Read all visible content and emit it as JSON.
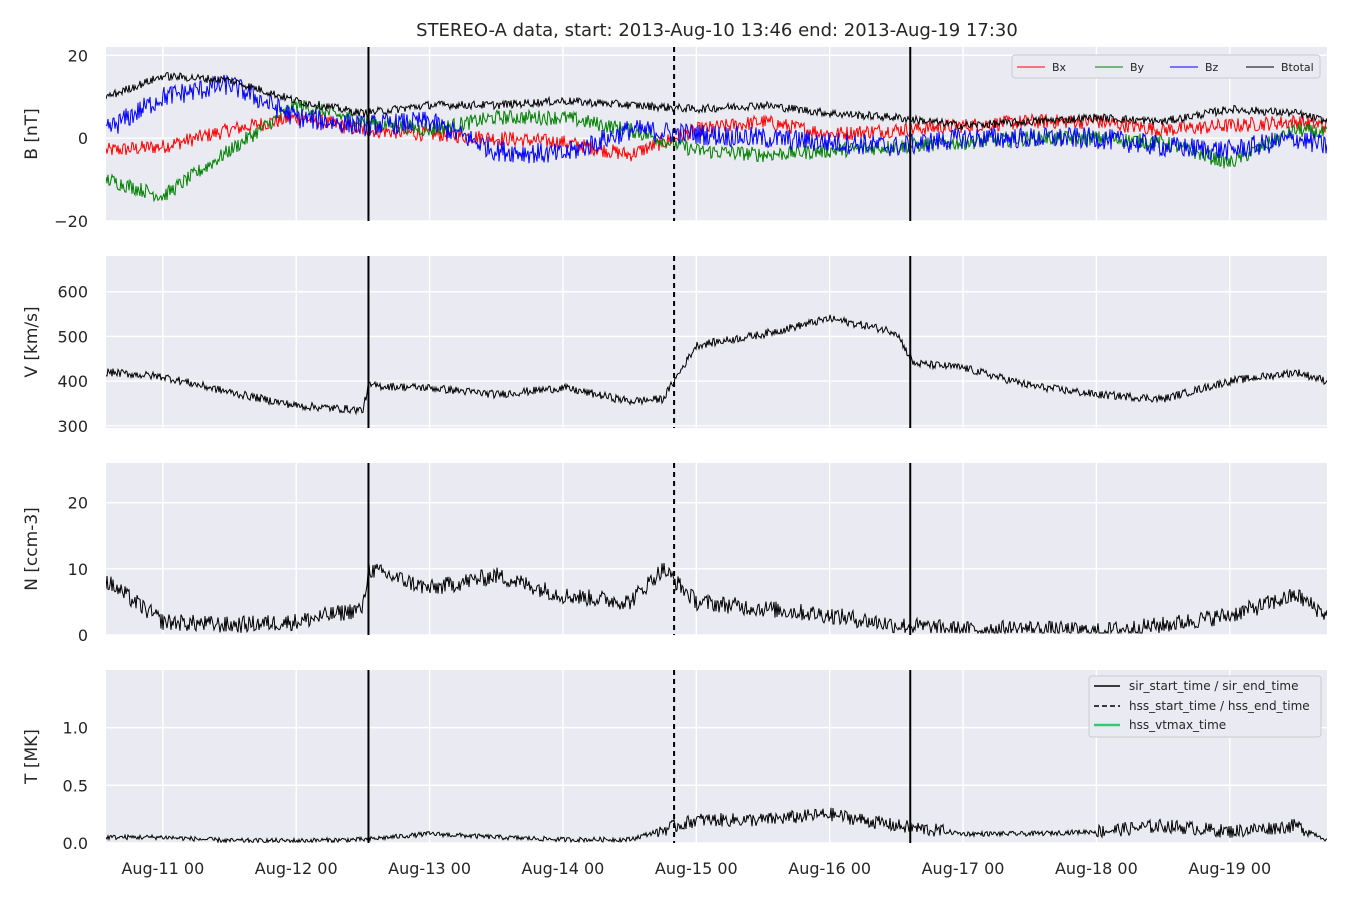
{
  "figure": {
    "title": "STEREO-A data, start: 2013-Aug-10 13:46  end: 2013-Aug-19 17:30"
  },
  "x_axis": {
    "start": "2013-08-10 13:46",
    "end": "2013-08-19 17:30",
    "tick_labels": [
      "Aug-11 00",
      "Aug-12 00",
      "Aug-13 00",
      "Aug-14 00",
      "Aug-15 00",
      "Aug-16 00",
      "Aug-17 00",
      "Aug-18 00",
      "Aug-19 00"
    ]
  },
  "events": {
    "sir_start_time": "2013-08-12 13:00",
    "hss_start_time": "2013-08-14 20:00",
    "sir_end_time": "2013-08-16 14:30",
    "style": {
      "sir": "solid",
      "hss": "dashed"
    }
  },
  "colors": {
    "plot_bg": "#eaeaf2",
    "grid": "#ffffff",
    "Bx": "#ff0000",
    "By": "#008000",
    "Bz": "#0000ff",
    "Btotal": "#000000",
    "hss_vtmax": "#2ecc71"
  },
  "panels": [
    {
      "id": "B",
      "ylabel": "B [nT]",
      "yticks": [
        "20",
        "0",
        "−20"
      ]
    },
    {
      "id": "V",
      "ylabel": "V [km/s]",
      "yticks": [
        "600",
        "500",
        "400",
        "300"
      ]
    },
    {
      "id": "N",
      "ylabel": "N [ccm-3]",
      "yticks": [
        "20",
        "10",
        "0"
      ]
    },
    {
      "id": "T",
      "ylabel": "T [MK]",
      "yticks": [
        "1.0",
        "0.5",
        "0.0"
      ]
    }
  ],
  "legend_b": [
    "Bx",
    "By",
    "Bz",
    "Btotal"
  ],
  "legend_t": [
    "sir_start_time / sir_end_time",
    "hss_start_time / hss_end_time",
    "hss_vtmax_time"
  ],
  "chart_data": [
    {
      "type": "line",
      "ylabel": "B [nT]",
      "ylim": [
        -20,
        22
      ],
      "grid": true,
      "legend": "top-right",
      "x": [
        "2013-08-10 14:00",
        "2013-08-11 00:00",
        "2013-08-11 12:00",
        "2013-08-12 00:00",
        "2013-08-12 12:00",
        "2013-08-13 00:00",
        "2013-08-13 12:00",
        "2013-08-14 00:00",
        "2013-08-14 12:00",
        "2013-08-15 00:00",
        "2013-08-15 12:00",
        "2013-08-16 00:00",
        "2013-08-16 12:00",
        "2013-08-17 00:00",
        "2013-08-17 12:00",
        "2013-08-18 00:00",
        "2013-08-18 12:00",
        "2013-08-19 00:00",
        "2013-08-19 12:00",
        "2013-08-19 17:30"
      ],
      "series": [
        {
          "name": "Bx",
          "values": [
            -3,
            -2,
            2,
            5,
            2,
            1,
            0,
            -1,
            -4,
            2,
            4,
            1,
            2,
            3,
            4,
            4,
            2,
            3,
            4,
            3
          ]
        },
        {
          "name": "By",
          "values": [
            -10,
            -14,
            -3,
            8,
            4,
            2,
            5,
            5,
            2,
            -3,
            -4,
            -3,
            -2,
            -1,
            0,
            0,
            -1,
            -6,
            2,
            1
          ]
        },
        {
          "name": "Bz",
          "values": [
            2,
            10,
            13,
            5,
            3,
            4,
            -3,
            -4,
            2,
            1,
            0,
            -1,
            -2,
            0,
            0,
            0,
            -2,
            -3,
            0,
            -2
          ]
        },
        {
          "name": "Btotal",
          "values": [
            10,
            15,
            14,
            9,
            6,
            8,
            8,
            9,
            8,
            7,
            8,
            6,
            5,
            3,
            4,
            5,
            4,
            7,
            6,
            4
          ]
        }
      ]
    },
    {
      "type": "line",
      "ylabel": "V [km/s]",
      "ylim": [
        295,
        680
      ],
      "grid": true,
      "x": [
        "2013-08-10 14:00",
        "2013-08-11 00:00",
        "2013-08-11 12:00",
        "2013-08-12 00:00",
        "2013-08-12 12:00",
        "2013-08-12 13:00",
        "2013-08-13 00:00",
        "2013-08-13 12:00",
        "2013-08-14 00:00",
        "2013-08-14 12:00",
        "2013-08-14 18:00",
        "2013-08-15 00:00",
        "2013-08-15 12:00",
        "2013-08-16 00:00",
        "2013-08-16 12:00",
        "2013-08-16 15:00",
        "2013-08-17 00:00",
        "2013-08-17 12:00",
        "2013-08-18 00:00",
        "2013-08-18 12:00",
        "2013-08-19 00:00",
        "2013-08-19 12:00",
        "2013-08-19 17:30"
      ],
      "series": [
        {
          "name": "V",
          "values": [
            420,
            410,
            375,
            345,
            335,
            390,
            385,
            370,
            385,
            355,
            360,
            480,
            505,
            540,
            510,
            440,
            430,
            390,
            370,
            360,
            400,
            420,
            400
          ]
        }
      ]
    },
    {
      "type": "line",
      "ylabel": "N [ccm-3]",
      "ylim": [
        0,
        26
      ],
      "grid": true,
      "x": [
        "2013-08-10 14:00",
        "2013-08-11 00:00",
        "2013-08-11 12:00",
        "2013-08-12 00:00",
        "2013-08-12 12:00",
        "2013-08-12 13:00",
        "2013-08-13 00:00",
        "2013-08-13 12:00",
        "2013-08-14 00:00",
        "2013-08-14 12:00",
        "2013-08-14 18:00",
        "2013-08-15 00:00",
        "2013-08-15 12:00",
        "2013-08-16 00:00",
        "2013-08-16 12:00",
        "2013-08-17 00:00",
        "2013-08-17 12:00",
        "2013-08-18 00:00",
        "2013-08-18 12:00",
        "2013-08-19 00:00",
        "2013-08-19 12:00",
        "2013-08-19 17:30"
      ],
      "series": [
        {
          "name": "N",
          "values": [
            8,
            2,
            1.5,
            2,
            4,
            10,
            7,
            9,
            6,
            5,
            10,
            5,
            4,
            3,
            1.5,
            0.8,
            1,
            0.5,
            1.5,
            3,
            6,
            3
          ]
        }
      ]
    },
    {
      "type": "line",
      "ylabel": "T [MK]",
      "ylim": [
        0,
        1.5
      ],
      "grid": true,
      "legend": "top-right",
      "x": [
        "2013-08-10 14:00",
        "2013-08-11 00:00",
        "2013-08-11 12:00",
        "2013-08-12 00:00",
        "2013-08-12 12:00",
        "2013-08-13 00:00",
        "2013-08-13 12:00",
        "2013-08-14 00:00",
        "2013-08-14 12:00",
        "2013-08-15 00:00",
        "2013-08-15 12:00",
        "2013-08-16 00:00",
        "2013-08-16 12:00",
        "2013-08-17 00:00",
        "2013-08-17 12:00",
        "2013-08-18 00:00",
        "2013-08-18 12:00",
        "2013-08-19 00:00",
        "2013-08-19 12:00",
        "2013-08-19 17:30"
      ],
      "series": [
        {
          "name": "T",
          "values": [
            0.05,
            0.05,
            0.02,
            0.02,
            0.03,
            0.08,
            0.05,
            0.03,
            0.03,
            0.2,
            0.2,
            0.25,
            0.15,
            0.08,
            0.08,
            0.1,
            0.15,
            0.1,
            0.15,
            0.03
          ]
        }
      ]
    }
  ]
}
